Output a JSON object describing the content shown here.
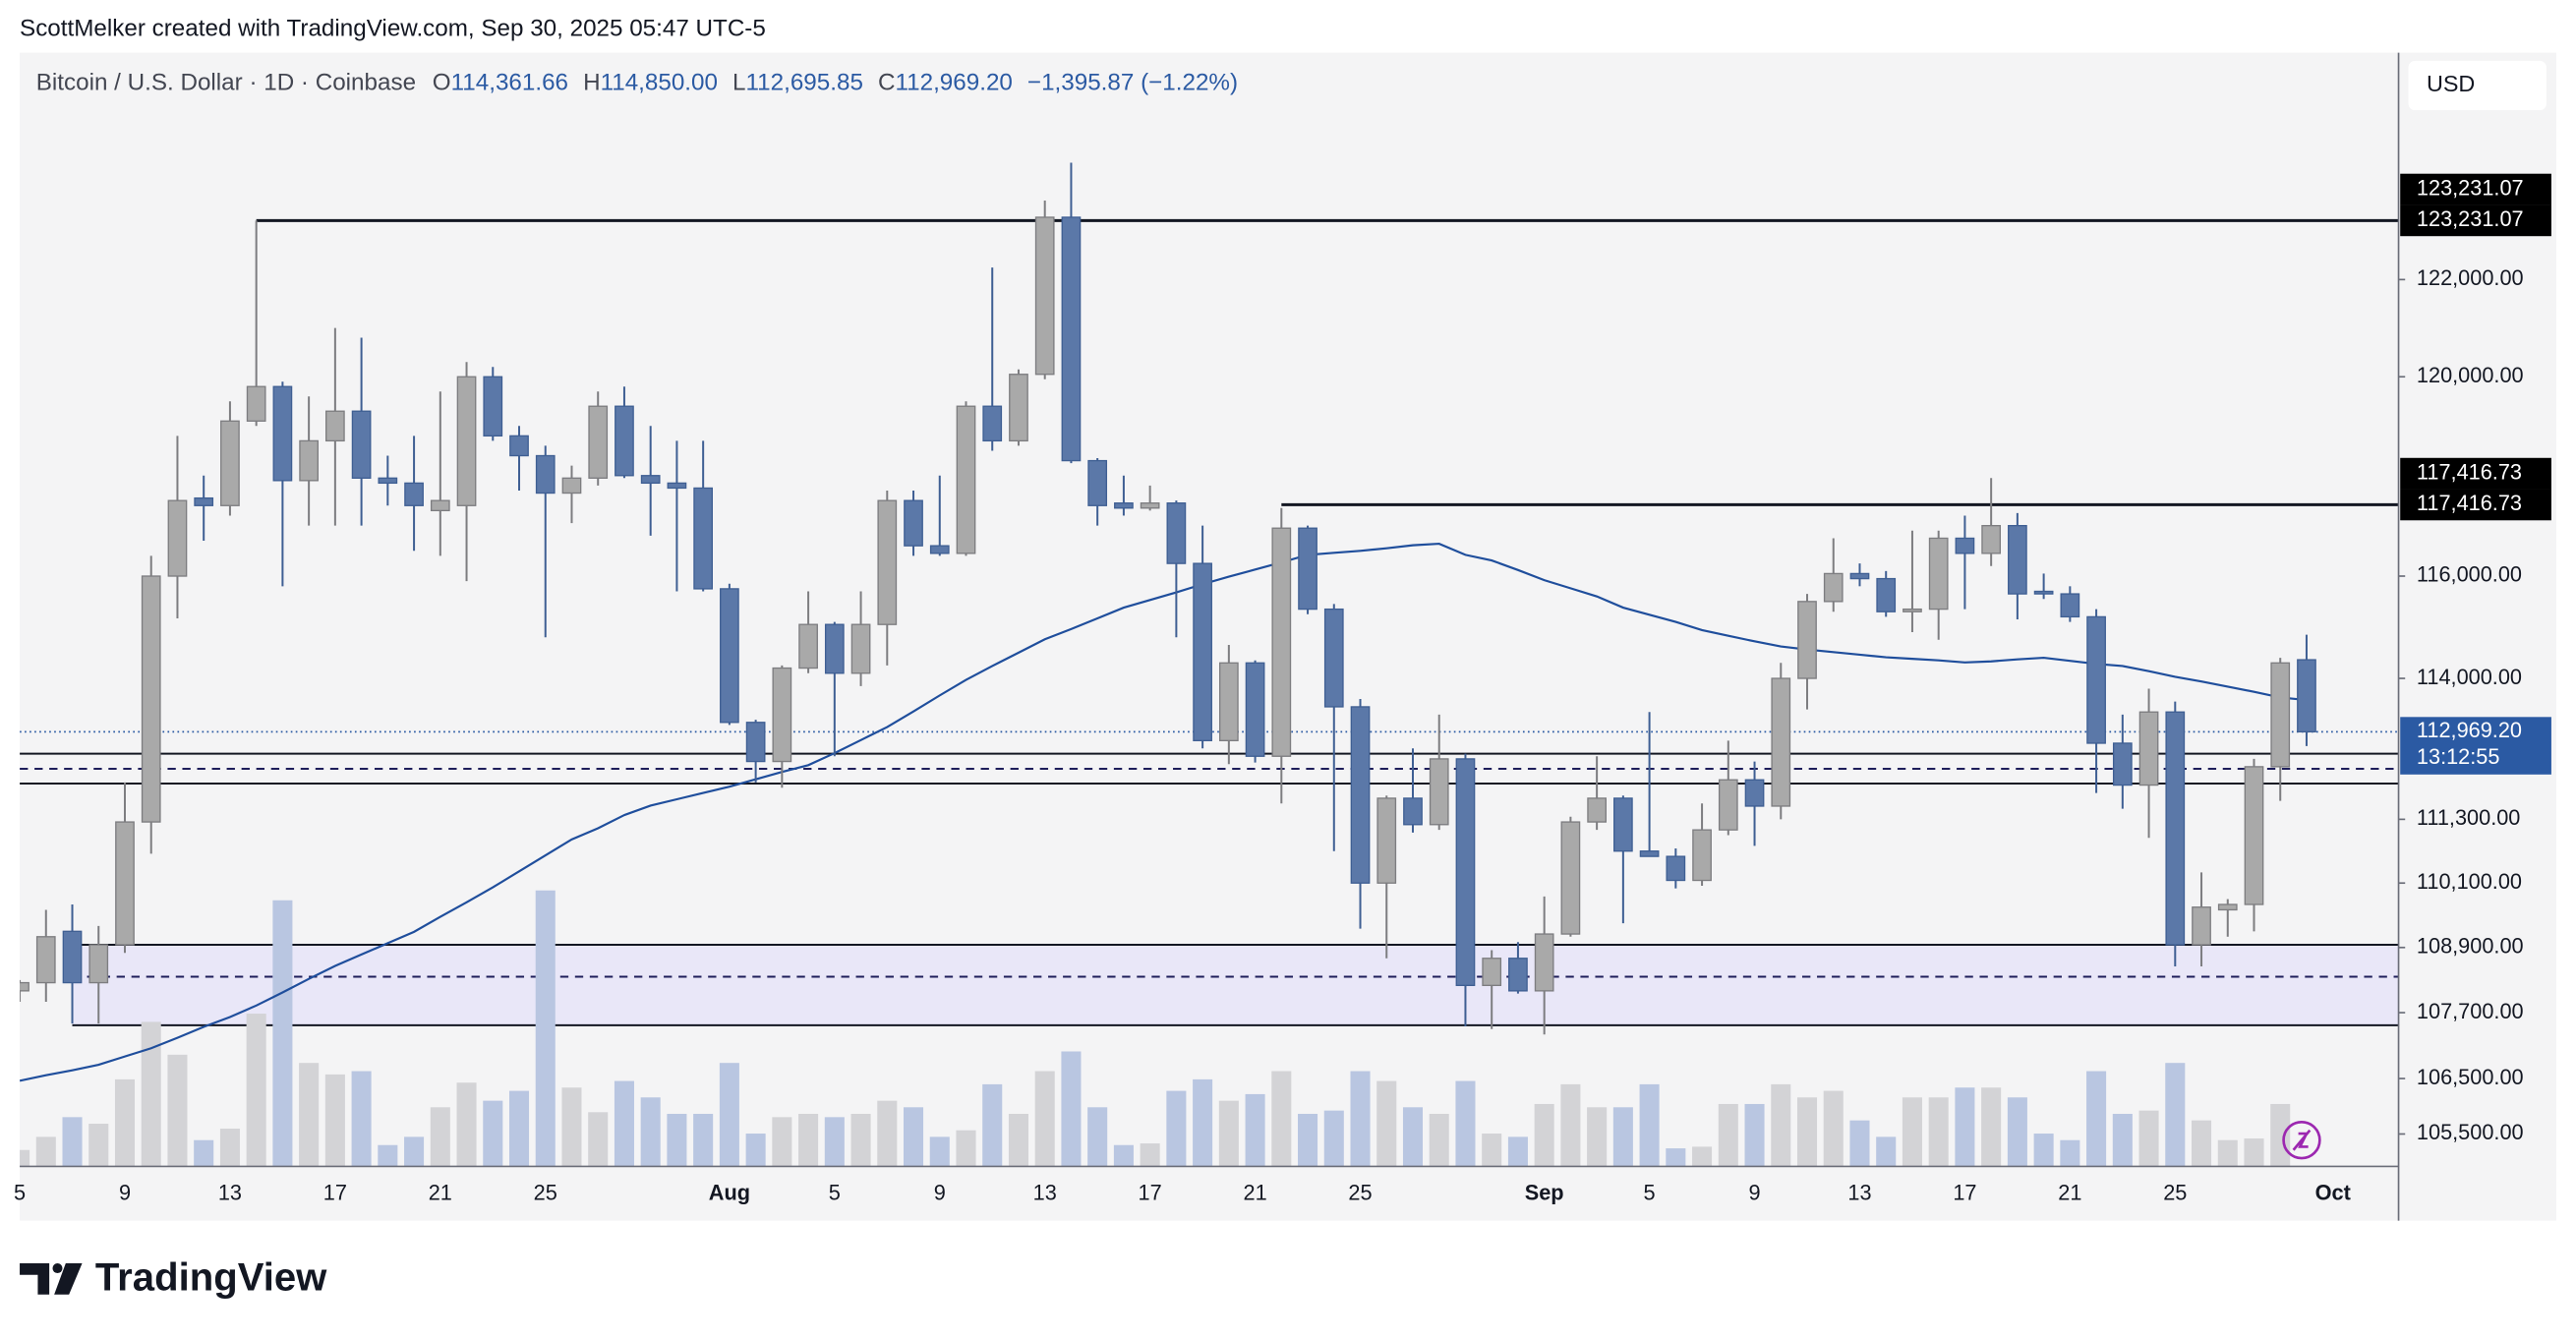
{
  "header": {
    "credit": "ScottMelker created with TradingView.com, Sep 30, 2025 05:47 UTC-5"
  },
  "legend": {
    "symbol": "Bitcoin / U.S. Dollar · 1D · Coinbase",
    "fields": [
      {
        "key": "O",
        "value": "114,361.66"
      },
      {
        "key": "H",
        "value": "114,850.00"
      },
      {
        "key": "L",
        "value": "112,695.85"
      },
      {
        "key": "C",
        "value": "112,969.20"
      }
    ],
    "change": "−1,395.87 (−1.22%)"
  },
  "currency": "USD",
  "brand": "TradingView",
  "chart_data": {
    "type": "candlestick",
    "log_scale": true,
    "categories": [
      "5",
      null,
      null,
      null,
      "9",
      null,
      null,
      null,
      "13",
      null,
      null,
      null,
      "17",
      null,
      null,
      null,
      "21",
      null,
      null,
      null,
      "25",
      null,
      null,
      null,
      null,
      null,
      null,
      "Aug",
      null,
      null,
      null,
      "5",
      null,
      null,
      null,
      "9",
      null,
      null,
      null,
      "13",
      null,
      null,
      null,
      "17",
      null,
      null,
      null,
      "21",
      null,
      null,
      null,
      "25",
      null,
      null,
      null,
      null,
      null,
      null,
      "Sep",
      null,
      null,
      null,
      "5",
      null,
      null,
      null,
      "9",
      null,
      null,
      null,
      "13",
      null,
      null,
      null,
      "17",
      null,
      null,
      null,
      "21",
      null,
      null,
      null,
      "25",
      null,
      null,
      null,
      null,
      null,
      "Oct"
    ],
    "ohlc": {
      "up_color": "#a9a9a9",
      "down_color": "#5b78a8",
      "open": [
        108100,
        108250,
        109200,
        108250,
        108950,
        111250,
        116000,
        117550,
        117400,
        119100,
        119800,
        117900,
        118700,
        119300,
        117950,
        117850,
        117300,
        117400,
        120000,
        118800,
        118400,
        117650,
        117950,
        119400,
        118000,
        117850,
        117750,
        115750,
        113150,
        112400,
        114200,
        115050,
        114100,
        115050,
        117500,
        116600,
        116450,
        119400,
        118700,
        120050,
        123300,
        118300,
        117450,
        117350,
        117450,
        116250,
        112800,
        114300,
        112500,
        116950,
        115350,
        113450,
        110100,
        111700,
        111200,
        112450,
        108200,
        108700,
        108100,
        109150,
        111250,
        111700,
        110700,
        110600,
        110150,
        111100,
        112050,
        111550,
        114000,
        115500,
        116050,
        115950,
        115300,
        115350,
        116750,
        116450,
        117000,
        115700,
        115650,
        115200,
        112750,
        111950,
        113350,
        108950,
        109600,
        109700,
        112300,
        114361.66,
        null
      ],
      "high": [
        108300,
        109600,
        109700,
        109300,
        112000,
        116400,
        118800,
        118000,
        119500,
        123231.07,
        119900,
        119600,
        121000,
        120800,
        118400,
        118800,
        119700,
        120300,
        120200,
        119000,
        118600,
        118200,
        119700,
        119800,
        119000,
        118700,
        118700,
        115850,
        113200,
        114250,
        115700,
        115100,
        115700,
        117700,
        117700,
        118000,
        119500,
        122250,
        120150,
        123650,
        124450,
        118350,
        118000,
        117800,
        117500,
        117000,
        114650,
        114350,
        117350,
        117000,
        115450,
        113600,
        111750,
        112650,
        113300,
        112550,
        108850,
        109000,
        109850,
        111350,
        112500,
        111750,
        113350,
        110750,
        111600,
        112800,
        112400,
        114300,
        115650,
        116750,
        116250,
        116100,
        116900,
        116900,
        117200,
        117950,
        117250,
        116050,
        115800,
        115350,
        113300,
        113800,
        113550,
        110300,
        109800,
        112450,
        114400,
        114850,
        null
      ],
      "low": [
        107900,
        107900,
        107500,
        107500,
        108800,
        110650,
        115170,
        116700,
        117200,
        119000,
        115800,
        117000,
        117000,
        117000,
        117400,
        116500,
        116400,
        115900,
        118700,
        117700,
        114800,
        117050,
        117800,
        117950,
        116800,
        115700,
        115700,
        113100,
        112000,
        111900,
        114100,
        112500,
        113850,
        114250,
        116400,
        116400,
        116400,
        118500,
        118600,
        119950,
        118250,
        117000,
        117200,
        117300,
        114800,
        112650,
        112350,
        112380,
        111600,
        115250,
        110700,
        109250,
        108700,
        111050,
        111100,
        107450,
        107400,
        108050,
        107300,
        109100,
        111100,
        109350,
        110600,
        110000,
        110050,
        111000,
        110800,
        111300,
        113400,
        115300,
        115800,
        115200,
        114900,
        114750,
        115350,
        116200,
        115150,
        115550,
        115100,
        111800,
        111500,
        110950,
        108550,
        108550,
        109100,
        109200,
        111650,
        112695.85,
        null
      ],
      "close": [
        108250,
        109100,
        108250,
        108950,
        111250,
        116000,
        117500,
        117400,
        119100,
        119800,
        117900,
        118700,
        119300,
        117950,
        117850,
        117400,
        117500,
        120000,
        118800,
        118400,
        117650,
        117950,
        119400,
        118000,
        117850,
        117750,
        115750,
        113150,
        112400,
        114200,
        115050,
        114100,
        115050,
        117500,
        116600,
        116450,
        119400,
        118700,
        120050,
        123300,
        118300,
        117400,
        117350,
        117450,
        116250,
        112800,
        114300,
        112500,
        116950,
        115350,
        113450,
        110100,
        111700,
        111200,
        112450,
        108200,
        108700,
        108100,
        109150,
        111250,
        111700,
        110700,
        110600,
        110150,
        111100,
        112050,
        111550,
        114000,
        115500,
        116050,
        115950,
        115300,
        115350,
        116750,
        116450,
        117000,
        115650,
        115650,
        115200,
        112750,
        111950,
        113350,
        108950,
        109650,
        109700,
        112300,
        114300,
        112969.2,
        null
      ],
      "volume_up_color": "#d3d3d6",
      "volume_down_color": "#b9c6e1",
      "volume": [
        10,
        18,
        30,
        26,
        53,
        88,
        68,
        16,
        23,
        93,
        162,
        63,
        56,
        58,
        13,
        18,
        36,
        51,
        40,
        46,
        168,
        48,
        33,
        52,
        42,
        32,
        32,
        63,
        20,
        30,
        32,
        30,
        32,
        40,
        36,
        18,
        22,
        50,
        32,
        58,
        70,
        36,
        13,
        14,
        46,
        53,
        40,
        44,
        58,
        32,
        34,
        58,
        52,
        36,
        32,
        52,
        20,
        18,
        38,
        50,
        36,
        36,
        50,
        11,
        12,
        38,
        38,
        50,
        42,
        46,
        28,
        18,
        42,
        42,
        48,
        48,
        42,
        20,
        16,
        58,
        32,
        34,
        63,
        28,
        16,
        17,
        38,
        null,
        null
      ]
    },
    "moving_average": {
      "color": "#1f4e9c",
      "values": [
        106460,
        106560,
        106650,
        106750,
        106900,
        107050,
        107240,
        107440,
        107620,
        107830,
        108070,
        108320,
        108560,
        108770,
        108980,
        109190,
        109470,
        109740,
        110020,
        110320,
        110620,
        110920,
        111130,
        111380,
        111560,
        111680,
        111800,
        111920,
        112060,
        112200,
        112330,
        112560,
        112810,
        113060,
        113360,
        113670,
        113970,
        114240,
        114500,
        114760,
        114960,
        115170,
        115380,
        115530,
        115680,
        115840,
        115990,
        116130,
        116270,
        116420,
        116460,
        116500,
        116550,
        116610,
        116640,
        116420,
        116310,
        116120,
        115920,
        115760,
        115600,
        115380,
        115240,
        115100,
        114940,
        114830,
        114720,
        114620,
        114560,
        114510,
        114460,
        114410,
        114380,
        114350,
        114310,
        114330,
        114370,
        114400,
        114340,
        114280,
        114240,
        114140,
        114030,
        113940,
        113840,
        113740,
        113630,
        113580,
        null
      ]
    },
    "levels": [
      {
        "value": 123231.07,
        "from": 9,
        "labels": [
          "123,231.07",
          "123,231.07"
        ]
      },
      {
        "value": 117416.73,
        "from": 48,
        "labels": [
          "117,416.73",
          "117,416.73"
        ]
      }
    ],
    "zones": [
      {
        "top": 112550,
        "bottom": 111980,
        "mid": 112260,
        "from": 0,
        "fill": "none"
      },
      {
        "top": 108950,
        "bottom": 107470,
        "mid": 108360,
        "from": 2,
        "fill": "#e9e7f8"
      }
    ],
    "current_price": {
      "value": 112969.2,
      "label": "112,969.20",
      "countdown": "13:12:55",
      "color": "#2b5aa3"
    },
    "ylim": [
      104920,
      126800
    ],
    "yticks": [
      {
        "value": 122000,
        "label": "122,000.00"
      },
      {
        "value": 120000,
        "label": "120,000.00"
      },
      {
        "value": 116000,
        "label": "116,000.00"
      },
      {
        "value": 114000,
        "label": "114,000.00"
      },
      {
        "value": 111300,
        "label": "111,300.00"
      },
      {
        "value": 110100,
        "label": "110,100.00"
      },
      {
        "value": 108900,
        "label": "108,900.00"
      },
      {
        "value": 107700,
        "label": "107,700.00"
      },
      {
        "value": 106500,
        "label": "106,500.00"
      },
      {
        "value": 105500,
        "label": "105,500.00"
      }
    ]
  }
}
